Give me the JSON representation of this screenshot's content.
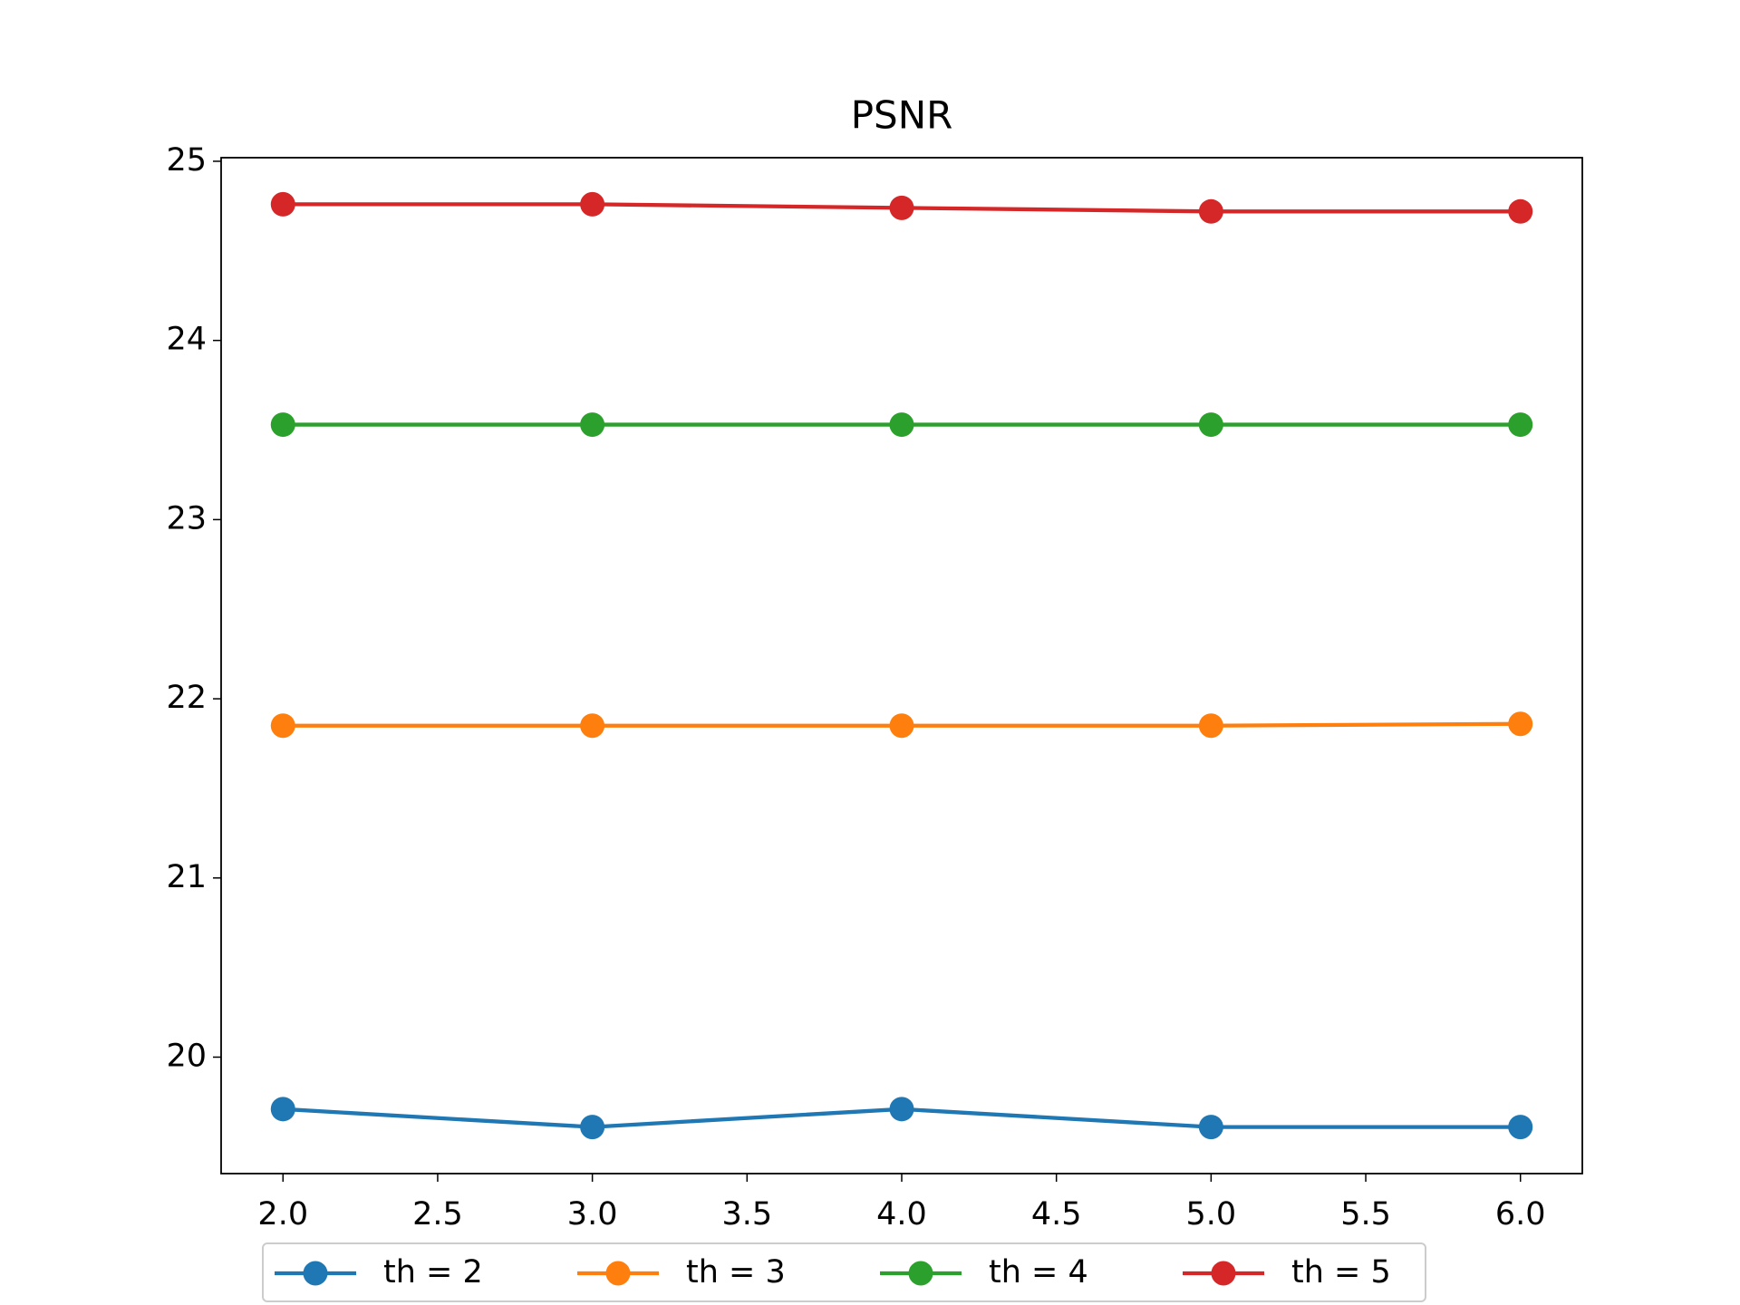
{
  "chart_data": {
    "type": "line",
    "title": "PSNR",
    "x": [
      2,
      3,
      4,
      5,
      6
    ],
    "series": [
      {
        "name": "th = 2",
        "color": "#1f77b4",
        "values": [
          19.71,
          19.61,
          19.71,
          19.61,
          19.61
        ]
      },
      {
        "name": "th = 3",
        "color": "#ff7f0e",
        "values": [
          21.85,
          21.85,
          21.85,
          21.85,
          21.86
        ]
      },
      {
        "name": "th = 4",
        "color": "#2ca02c",
        "values": [
          23.53,
          23.53,
          23.53,
          23.53,
          23.53
        ]
      },
      {
        "name": "th = 5",
        "color": "#d62728",
        "values": [
          24.76,
          24.76,
          24.74,
          24.72,
          24.72
        ]
      }
    ],
    "xlim": [
      1.8,
      6.2
    ],
    "xticks": [
      {
        "value": 2,
        "label": "2.0"
      },
      {
        "value": 2.5,
        "label": "2.5"
      },
      {
        "value": 3,
        "label": "3.0"
      },
      {
        "value": 3.5,
        "label": "3.5"
      },
      {
        "value": 4,
        "label": "4.0"
      },
      {
        "value": 4.5,
        "label": "4.5"
      },
      {
        "value": 5,
        "label": "5.0"
      },
      {
        "value": 5.5,
        "label": "5.5"
      },
      {
        "value": 6,
        "label": "6.0"
      }
    ],
    "ylim": [
      19.35,
      25.02
    ],
    "yticks": [
      20,
      21,
      22,
      23,
      24,
      25
    ],
    "grid": false,
    "legend": "below"
  }
}
